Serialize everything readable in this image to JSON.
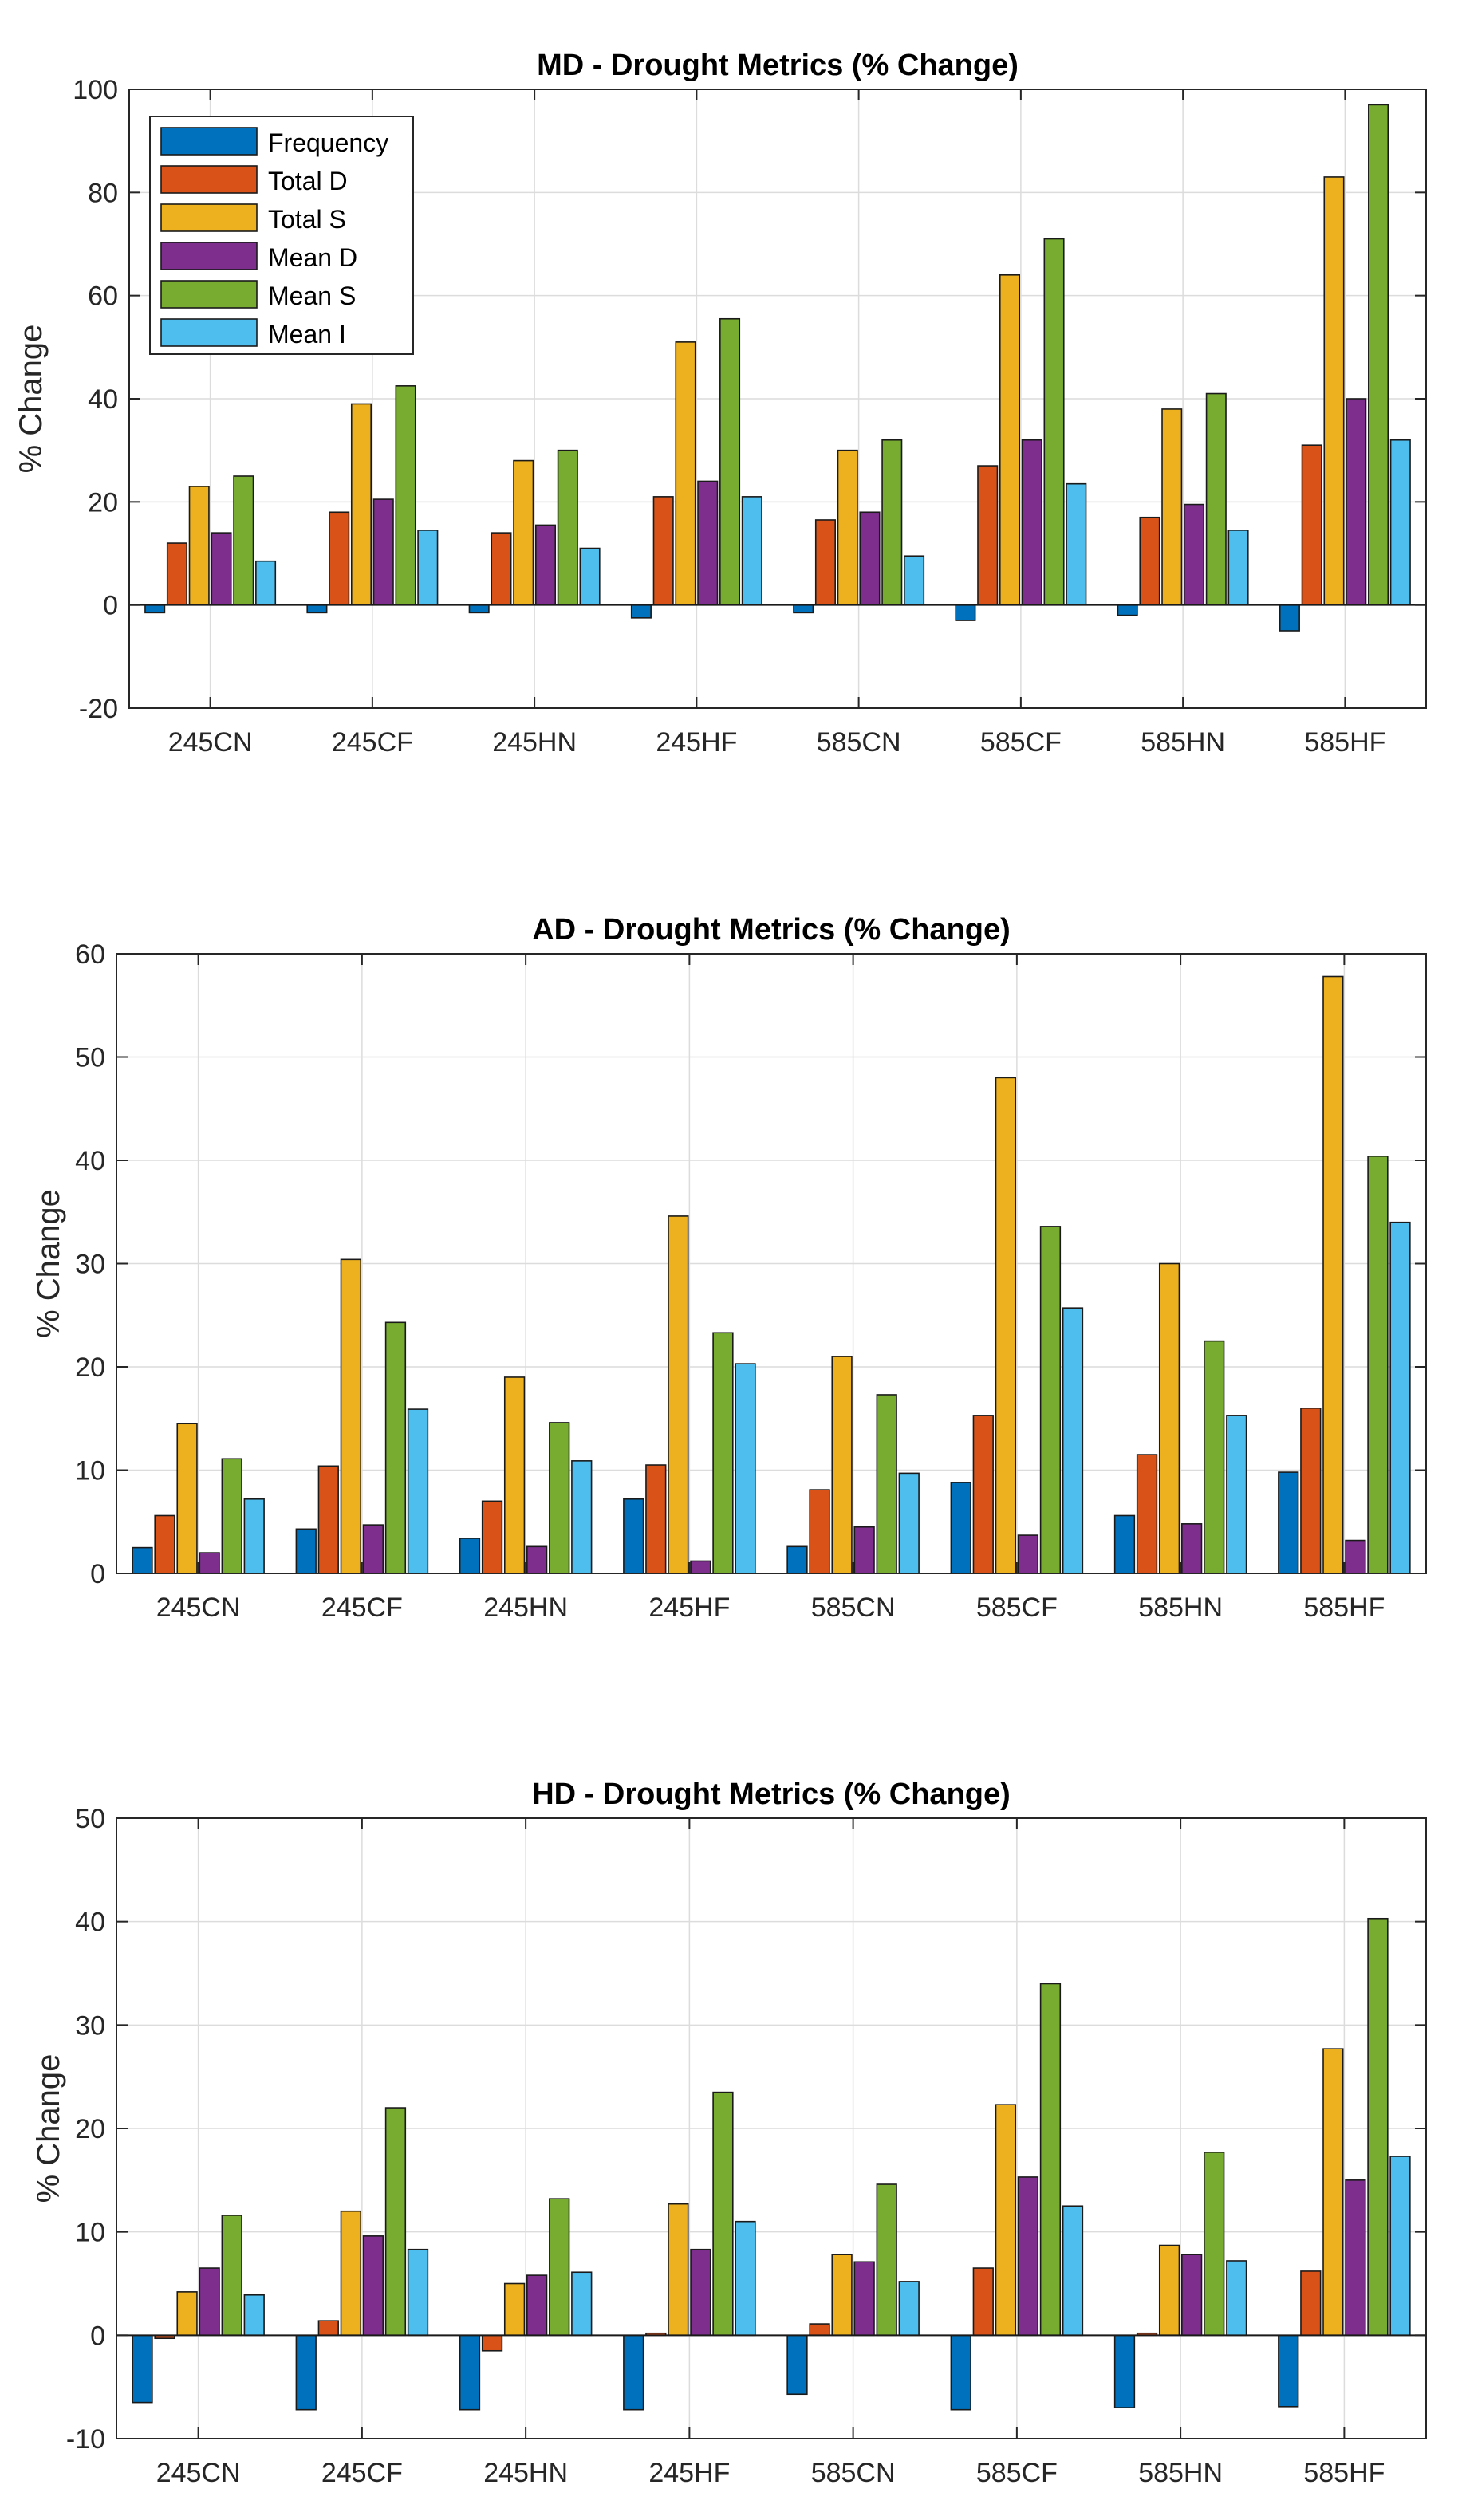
{
  "legend": {
    "placement": "top-left",
    "panel": 0,
    "entries": [
      "Frequency",
      "Total D",
      "Total S",
      "Mean D",
      "Mean S",
      "Mean I"
    ]
  },
  "colors": [
    "#0072BD",
    "#D95319",
    "#EDB120",
    "#7E2F8E",
    "#77AC30",
    "#4DBEEE"
  ],
  "chart_data": [
    {
      "type": "bar",
      "title": "MD - Drought Metrics (% Change)",
      "xlabel": "",
      "ylabel": "% Change",
      "ylim": [
        -20,
        100
      ],
      "yticks": [
        -20,
        0,
        20,
        40,
        60,
        80,
        100
      ],
      "grid": true,
      "categories": [
        "245CN",
        "245CF",
        "245HN",
        "245HF",
        "585CN",
        "585CF",
        "585HN",
        "585HF"
      ],
      "series": [
        {
          "name": "Frequency",
          "values": [
            -1.5,
            -1.5,
            -1.5,
            -2.5,
            -1.5,
            -3,
            -2,
            -5
          ]
        },
        {
          "name": "Total D",
          "values": [
            12,
            18,
            14,
            21,
            16.5,
            27,
            17,
            31
          ]
        },
        {
          "name": "Total S",
          "values": [
            23,
            39,
            28,
            51,
            30,
            64,
            38,
            83
          ]
        },
        {
          "name": "Mean D",
          "values": [
            14,
            20.5,
            15.5,
            24,
            18,
            32,
            19.5,
            40
          ]
        },
        {
          "name": "Mean S",
          "values": [
            25,
            42.5,
            30,
            55.5,
            32,
            71,
            41,
            97
          ]
        },
        {
          "name": "Mean I",
          "values": [
            8.5,
            14.5,
            11,
            21,
            9.5,
            23.5,
            14.5,
            32
          ]
        }
      ]
    },
    {
      "type": "bar",
      "title": "AD - Drought Metrics (% Change)",
      "xlabel": "",
      "ylabel": "% Change",
      "ylim": [
        0,
        60
      ],
      "yticks": [
        0,
        10,
        20,
        30,
        40,
        50,
        60
      ],
      "grid": true,
      "categories": [
        "245CN",
        "245CF",
        "245HN",
        "245HF",
        "585CN",
        "585CF",
        "585HN",
        "585HF"
      ],
      "series": [
        {
          "name": "Frequency",
          "values": [
            2.5,
            4.3,
            3.4,
            7.2,
            2.6,
            8.8,
            5.6,
            9.8
          ]
        },
        {
          "name": "Total D",
          "values": [
            5.6,
            10.4,
            7,
            10.5,
            8.1,
            15.3,
            11.5,
            16
          ]
        },
        {
          "name": "Total S",
          "values": [
            14.5,
            30.4,
            19,
            34.6,
            21,
            48,
            30,
            57.8
          ]
        },
        {
          "name": "Mean D",
          "values": [
            2,
            4.7,
            2.6,
            1.2,
            4.5,
            3.7,
            4.8,
            3.2
          ]
        },
        {
          "name": "Mean S",
          "values": [
            11.1,
            24.3,
            14.6,
            23.3,
            17.3,
            33.6,
            22.5,
            40.4
          ]
        },
        {
          "name": "Mean I",
          "values": [
            7.2,
            15.9,
            10.9,
            20.3,
            9.7,
            25.7,
            15.3,
            34
          ]
        }
      ]
    },
    {
      "type": "bar",
      "title": "HD - Drought Metrics (% Change)",
      "xlabel": "",
      "ylabel": "% Change",
      "ylim": [
        -10,
        50
      ],
      "yticks": [
        -10,
        0,
        10,
        20,
        30,
        40,
        50
      ],
      "grid": true,
      "categories": [
        "245CN",
        "245CF",
        "245HN",
        "245HF",
        "585CN",
        "585CF",
        "585HN",
        "585HF"
      ],
      "series": [
        {
          "name": "Frequency",
          "values": [
            -6.5,
            -7.2,
            -7.2,
            -7.2,
            -5.7,
            -7.2,
            -7,
            -6.9
          ]
        },
        {
          "name": "Total D",
          "values": [
            -0.3,
            1.4,
            -1.5,
            0.2,
            1.1,
            6.5,
            0.2,
            6.2
          ]
        },
        {
          "name": "Total S",
          "values": [
            4.2,
            12,
            5,
            12.7,
            7.8,
            22.3,
            8.7,
            27.7
          ]
        },
        {
          "name": "Mean D",
          "values": [
            6.5,
            9.6,
            5.8,
            8.3,
            7.1,
            15.3,
            7.8,
            15
          ]
        },
        {
          "name": "Mean S",
          "values": [
            11.6,
            22,
            13.2,
            23.5,
            14.6,
            34,
            17.7,
            40.3
          ]
        },
        {
          "name": "Mean I",
          "values": [
            3.9,
            8.3,
            6.1,
            11,
            5.2,
            12.5,
            7.2,
            17.3
          ]
        }
      ]
    }
  ]
}
